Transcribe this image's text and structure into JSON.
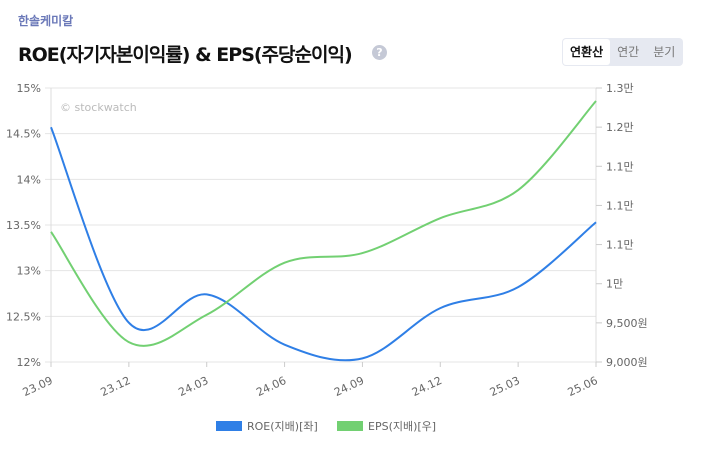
{
  "company": "한솔케미칼",
  "title": "ROE(자기자본이익률) & EPS(주당순이익)",
  "help_icon": "?",
  "tabs": [
    {
      "label": "연환산",
      "active": true
    },
    {
      "label": "연간",
      "active": false
    },
    {
      "label": "분기",
      "active": false
    }
  ],
  "watermark": "© stockwatch",
  "chart_data": {
    "type": "line",
    "categories": [
      "23.09",
      "23.12",
      "24.03",
      "24.06",
      "24.09",
      "24.12",
      "25.03",
      "25.06"
    ],
    "series": [
      {
        "name": "ROE(지배)[좌]",
        "axis": "left",
        "color": "#2f7fe6",
        "values": [
          14.57,
          12.43,
          12.74,
          12.19,
          12.04,
          12.59,
          12.82,
          13.53
        ]
      },
      {
        "name": "EPS(지배)[우]",
        "axis": "right",
        "color": "#72d072",
        "values": [
          10900,
          9290,
          9690,
          10450,
          10590,
          11100,
          11510,
          12810
        ]
      }
    ],
    "left_axis": {
      "range": [
        12,
        15
      ],
      "ticks": [
        "12%",
        "12.5%",
        "13%",
        "13.5%",
        "14%",
        "14.5%",
        "15%"
      ]
    },
    "right_axis": {
      "range": [
        9000,
        13000
      ],
      "ticks": [
        "9,000원",
        "9,500원",
        "1만",
        "1.1만",
        "1.1만",
        "1.1만",
        "1.2만",
        "1.3만"
      ]
    },
    "grid": true,
    "legend": "bottom"
  }
}
